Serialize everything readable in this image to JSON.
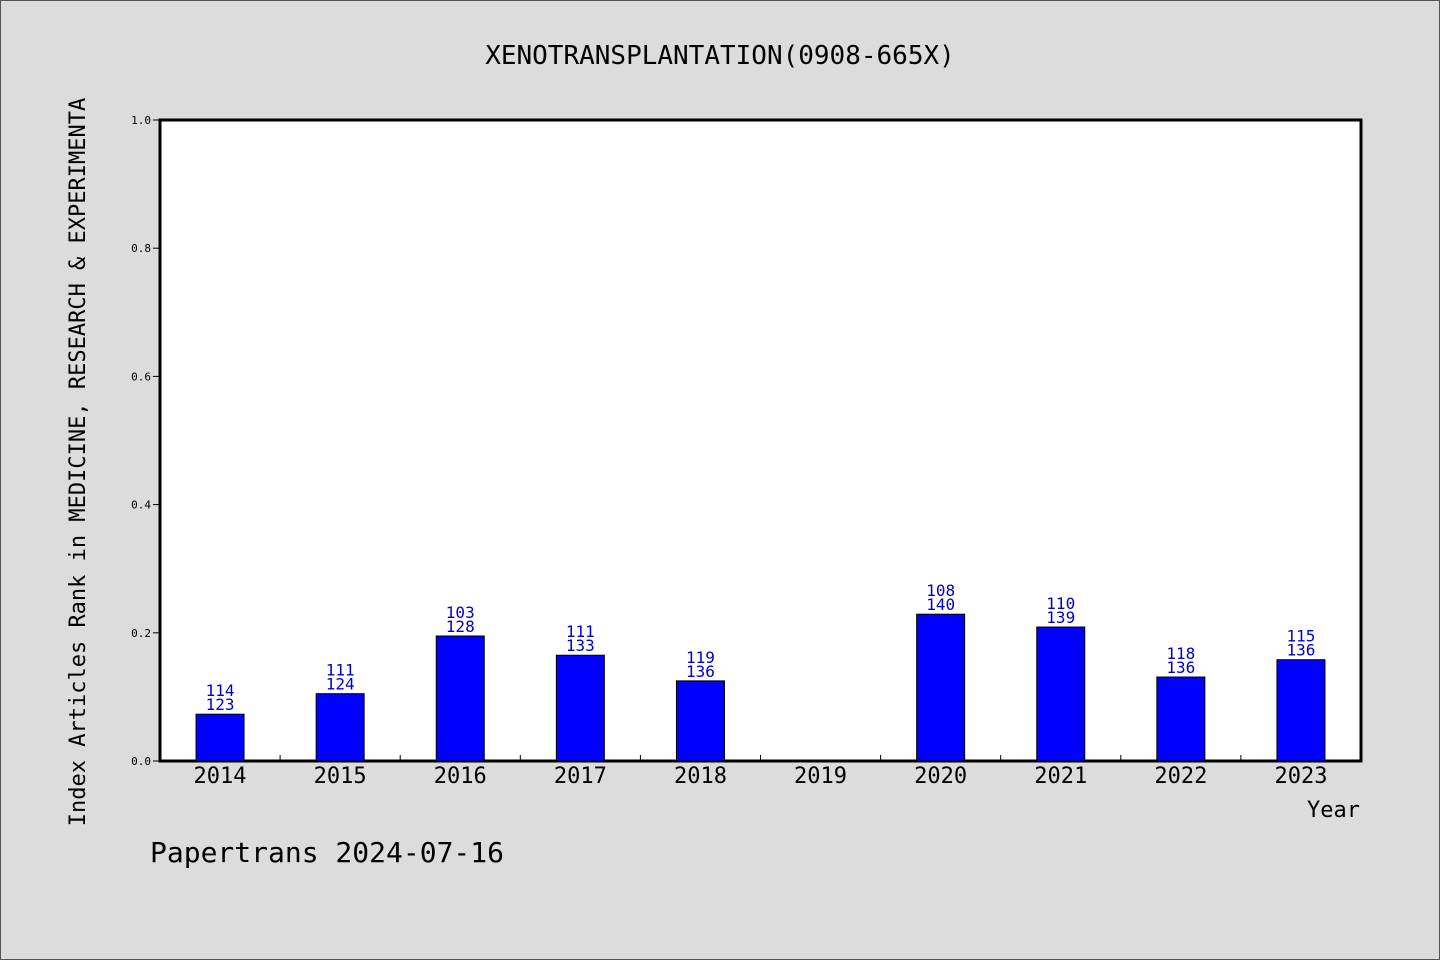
{
  "chart_data": {
    "type": "bar",
    "title": "XENOTRANSPLANTATION(0908-665X)",
    "xlabel": "Year",
    "ylabel": "Index Articles Rank in MEDICINE, RESEARCH & EXPERIMENTA",
    "ylim": [
      0,
      1.0
    ],
    "yticks": [
      "0.0",
      "0.2",
      "0.4",
      "0.6",
      "0.8",
      "1.0"
    ],
    "categories": [
      "2014",
      "2015",
      "2016",
      "2017",
      "2018",
      "2019",
      "2020",
      "2021",
      "2022",
      "2023"
    ],
    "values": [
      0.073,
      0.105,
      0.195,
      0.165,
      0.125,
      null,
      0.229,
      0.209,
      0.131,
      0.158
    ],
    "rank_labels": [
      "114",
      "111",
      "103",
      "111",
      "119",
      "",
      "108",
      "110",
      "118",
      "115"
    ],
    "total_labels": [
      "123",
      "124",
      "128",
      "133",
      "136",
      "",
      "140",
      "139",
      "136",
      "136"
    ],
    "bar_color": "#0000ff",
    "label_color": "#0000cc",
    "grid": false
  },
  "footer": {
    "credit": "Papertrans 2024-07-16"
  }
}
